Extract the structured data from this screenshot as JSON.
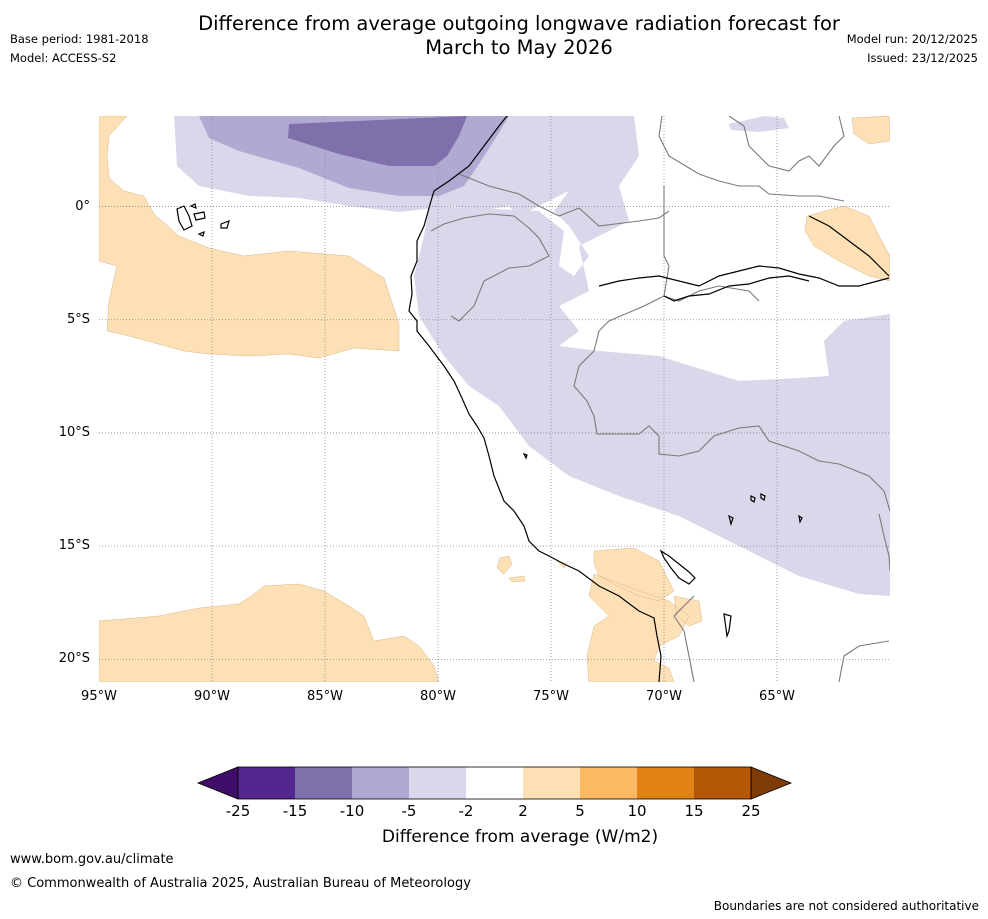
{
  "title_line1": "Difference from average outgoing longwave radiation forecast for",
  "title_line2": "March to May 2026",
  "base_period": "Base period: 1981-2018",
  "model": "Model: ACCESS-S2",
  "model_run": "Model run: 20/12/2025",
  "issued": "Issued: 23/12/2025",
  "map": {
    "lon_labels": [
      "95°W",
      "90°W",
      "85°W",
      "80°W",
      "75°W",
      "70°W",
      "65°W"
    ],
    "lat_labels": [
      "0°",
      "5°S",
      "10°S",
      "15°S",
      "20°S"
    ],
    "lon_range": [
      -95,
      -60
    ],
    "lat_range": [
      4,
      -21
    ]
  },
  "colors": {
    "below_25": "#3f0e68",
    "m25_m15": "#54278f",
    "m15_m10": "#7f70ac",
    "m10_m5": "#b0a9d1",
    "m5_m2": "#d8d8ea",
    "m2_2": "#ffffff",
    "p2_5": "#fde0b5",
    "p5_10": "#fdb863",
    "p10_15": "#e08214",
    "p15_25": "#b35806",
    "above_25": "#7f3b08",
    "coast": "#000000",
    "border": "#7a7a7a",
    "grid": "#888888"
  },
  "colorbar": {
    "tick_labels": [
      "-25",
      "-15",
      "-10",
      "-5",
      "-2",
      "2",
      "5",
      "10",
      "15",
      "25"
    ],
    "title": "Difference from average (W/m2)"
  },
  "footer": {
    "website": "www.bom.gov.au/climate",
    "copyright": "© Commonwealth of Australia 2025, Australian Bureau of Meteorology",
    "disclaimer": "Boundaries are not considered authoritative"
  }
}
